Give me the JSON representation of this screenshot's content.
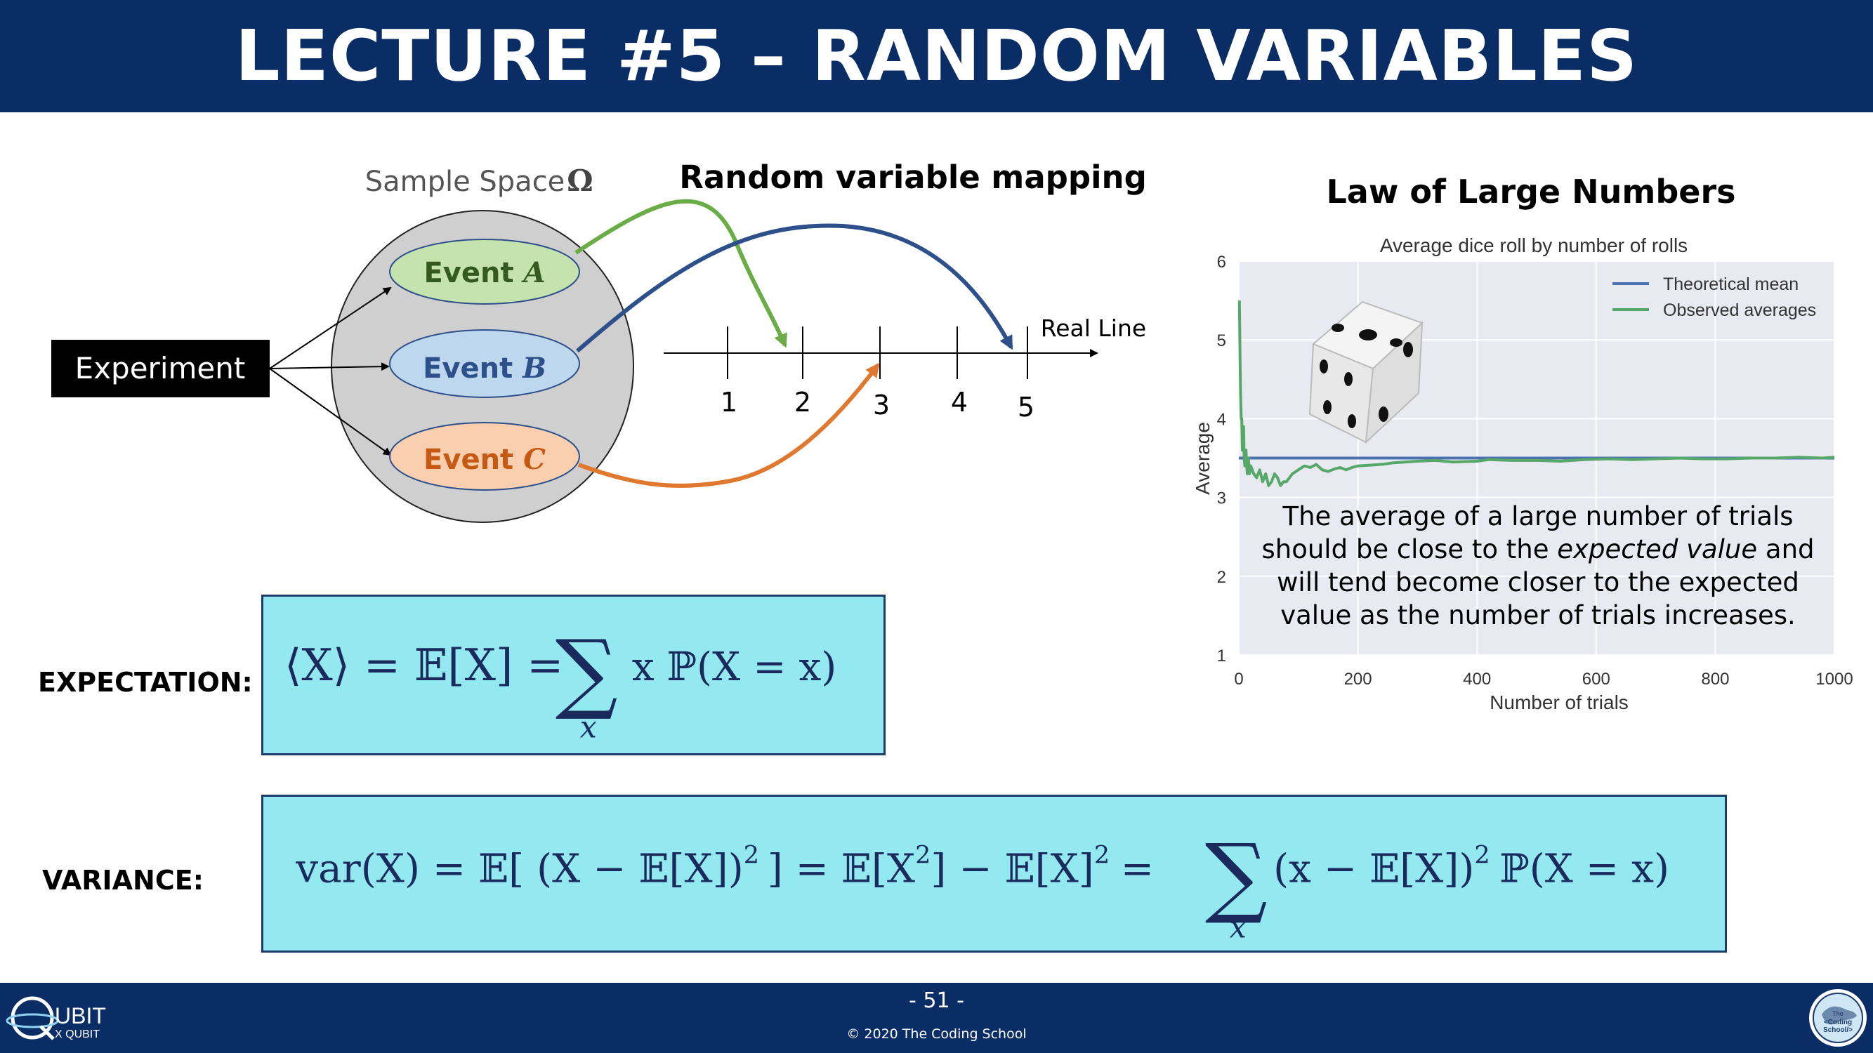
{
  "header": {
    "title": "LECTURE #5 – RANDOM VARIABLES"
  },
  "diagram": {
    "title": "Random variable mapping",
    "sample_space_label": "Sample Space",
    "sample_space_symbol": "Ω",
    "experiment_label": "Experiment",
    "events": [
      {
        "label": "Event",
        "symbol": "A",
        "color": "#6aac45",
        "fill": "#c5e3ae"
      },
      {
        "label": "Event",
        "symbol": "B",
        "color": "#2d4f8a",
        "fill": "#bdd7ee"
      },
      {
        "label": "Event",
        "symbol": "C",
        "color": "#e0782f",
        "fill": "#f9cfb0"
      }
    ],
    "real_line_label": "Real Line",
    "ticks": [
      "1",
      "2",
      "3",
      "4",
      "5"
    ],
    "mappings": [
      {
        "event": "A",
        "to": "2"
      },
      {
        "event": "B",
        "to": "5"
      },
      {
        "event": "C",
        "to": "3"
      }
    ]
  },
  "expectation": {
    "label": "EXPECTATION:",
    "parts": {
      "lhs": "⟨X⟩ = 𝔼[X] =",
      "sigma": "∑",
      "sub": "x",
      "rhs": "x  ℙ(X = x)"
    }
  },
  "variance": {
    "label": "VARIANCE:",
    "parts": {
      "p1": "var(X) = 𝔼[ (X − 𝔼[X])",
      "sup1": "2",
      "p2": "] = 𝔼[X",
      "sup2": "2",
      "p3": "] − 𝔼[X]",
      "sup3": "2",
      "p4": "=",
      "sigma": "∑",
      "sub": "x",
      "p5": "(x − 𝔼[X])",
      "sup4": "2",
      "p6": "ℙ(X = x)"
    }
  },
  "lln": {
    "title": "Law of Large Numbers",
    "text_before": "The average of a large number of trials should be close to the ",
    "text_emphasis": "expected value",
    "text_after": " and will tend become closer to the expected value as the number of trials increases."
  },
  "chart_data": {
    "type": "line",
    "title": "Average dice roll by number of rolls",
    "xlabel": "Number of trials",
    "ylabel": "Average",
    "xlim": [
      0,
      1000
    ],
    "ylim": [
      1,
      6
    ],
    "xticks": [
      "0",
      "200",
      "400",
      "600",
      "800",
      "1000"
    ],
    "yticks": [
      "1",
      "2",
      "3",
      "4",
      "5",
      "6"
    ],
    "grid": true,
    "legend_position": "top-right",
    "series": [
      {
        "name": "Theoretical mean",
        "color": "#4c72b0",
        "points": [
          [
            0,
            3.5
          ],
          [
            1000,
            3.5
          ]
        ]
      },
      {
        "name": "Observed averages",
        "color": "#55a868",
        "points": [
          [
            1,
            5.5
          ],
          [
            2,
            4.8
          ],
          [
            3,
            4.3
          ],
          [
            4,
            4.0
          ],
          [
            5,
            4.0
          ],
          [
            6,
            3.6
          ],
          [
            7,
            3.7
          ],
          [
            8,
            3.9
          ],
          [
            9,
            3.5
          ],
          [
            10,
            3.4
          ],
          [
            12,
            3.6
          ],
          [
            14,
            3.3
          ],
          [
            16,
            3.5
          ],
          [
            18,
            3.3
          ],
          [
            20,
            3.4
          ],
          [
            25,
            3.3
          ],
          [
            30,
            3.25
          ],
          [
            35,
            3.35
          ],
          [
            40,
            3.2
          ],
          [
            45,
            3.3
          ],
          [
            50,
            3.15
          ],
          [
            55,
            3.2
          ],
          [
            60,
            3.3
          ],
          [
            65,
            3.25
          ],
          [
            70,
            3.15
          ],
          [
            75,
            3.2
          ],
          [
            80,
            3.2
          ],
          [
            90,
            3.3
          ],
          [
            100,
            3.35
          ],
          [
            110,
            3.4
          ],
          [
            120,
            3.38
          ],
          [
            130,
            3.42
          ],
          [
            140,
            3.35
          ],
          [
            150,
            3.33
          ],
          [
            160,
            3.36
          ],
          [
            170,
            3.38
          ],
          [
            180,
            3.35
          ],
          [
            190,
            3.38
          ],
          [
            200,
            3.4
          ],
          [
            220,
            3.41
          ],
          [
            240,
            3.42
          ],
          [
            260,
            3.44
          ],
          [
            280,
            3.45
          ],
          [
            300,
            3.46
          ],
          [
            330,
            3.47
          ],
          [
            360,
            3.45
          ],
          [
            400,
            3.46
          ],
          [
            420,
            3.48
          ],
          [
            460,
            3.47
          ],
          [
            500,
            3.47
          ],
          [
            540,
            3.46
          ],
          [
            580,
            3.48
          ],
          [
            620,
            3.49
          ],
          [
            660,
            3.48
          ],
          [
            700,
            3.49
          ],
          [
            740,
            3.5
          ],
          [
            780,
            3.49
          ],
          [
            820,
            3.49
          ],
          [
            860,
            3.5
          ],
          [
            900,
            3.5
          ],
          [
            940,
            3.51
          ],
          [
            980,
            3.5
          ],
          [
            1000,
            3.51
          ]
        ]
      }
    ]
  }
}
